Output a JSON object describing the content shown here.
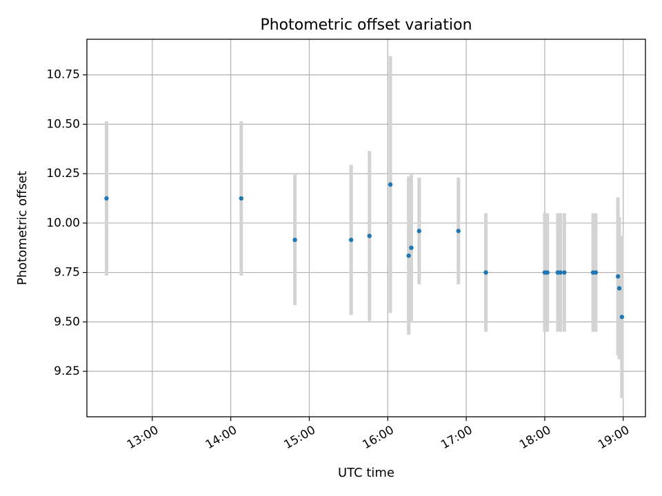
{
  "chart_data": {
    "type": "scatter",
    "title": "Photometric offset variation",
    "xlabel": "UTC time",
    "ylabel": "Photometric offset",
    "xlim": [
      "12:10",
      "19:17"
    ],
    "ylim": [
      9.02,
      10.93
    ],
    "x_ticks": [
      "13:00",
      "14:00",
      "15:00",
      "16:00",
      "17:00",
      "18:00",
      "19:00"
    ],
    "y_ticks": [
      "9.25",
      "9.50",
      "9.75",
      "10.00",
      "10.25",
      "10.50",
      "10.75"
    ],
    "grid": true,
    "point_color": "#1f77b4",
    "errorbar_color": "#d3d3d3",
    "points": [
      {
        "t": "12:25",
        "y": 10.125,
        "err": 0.39
      },
      {
        "t": "14:08",
        "y": 10.125,
        "err": 0.39
      },
      {
        "t": "14:49",
        "y": 9.915,
        "err": 0.33
      },
      {
        "t": "15:32",
        "y": 9.915,
        "err": 0.38
      },
      {
        "t": "15:46",
        "y": 9.935,
        "err": 0.43
      },
      {
        "t": "16:02",
        "y": 10.195,
        "err": 0.65
      },
      {
        "t": "16:16",
        "y": 9.835,
        "err": 0.4
      },
      {
        "t": "16:18",
        "y": 9.875,
        "err": 0.37
      },
      {
        "t": "16:24",
        "y": 9.96,
        "err": 0.27
      },
      {
        "t": "16:54",
        "y": 9.96,
        "err": 0.27
      },
      {
        "t": "17:15",
        "y": 9.75,
        "err": 0.3
      },
      {
        "t": "18:00",
        "y": 9.75,
        "err": 0.3
      },
      {
        "t": "18:02",
        "y": 9.75,
        "err": 0.3
      },
      {
        "t": "18:10",
        "y": 9.75,
        "err": 0.3
      },
      {
        "t": "18:12",
        "y": 9.75,
        "err": 0.3
      },
      {
        "t": "18:15",
        "y": 9.75,
        "err": 0.3
      },
      {
        "t": "18:37",
        "y": 9.75,
        "err": 0.3
      },
      {
        "t": "18:39",
        "y": 9.75,
        "err": 0.3
      },
      {
        "t": "18:56",
        "y": 9.73,
        "err": 0.4
      },
      {
        "t": "18:57",
        "y": 9.67,
        "err": 0.36
      },
      {
        "t": "18:59",
        "y": 9.525,
        "err": 0.41
      }
    ]
  }
}
